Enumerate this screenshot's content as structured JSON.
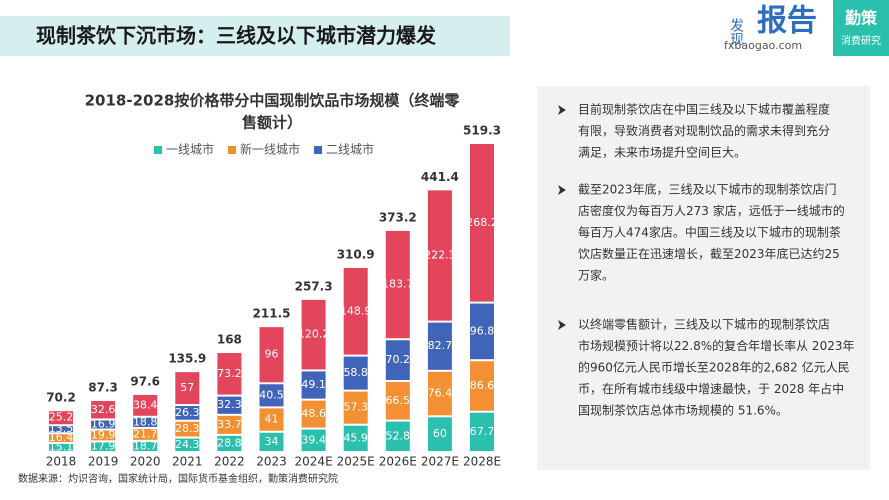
{
  "header": {
    "title": "现制茶饮下沉市场：三线及以下城市潜力爆发",
    "logo": {
      "small": "发现",
      "big": "报告",
      "url": "fxbaogao.com"
    },
    "brand": {
      "name": "勤策",
      "sub": "消费研究"
    }
  },
  "chart_data": {
    "type": "stacked_bar",
    "title_lines": [
      "2018-2028按价格带分中国现制饮品市场规模（终端零",
      "售额计）"
    ],
    "categories": [
      "2018",
      "2019",
      "2020",
      "2021",
      "2022",
      "2023",
      "2024E",
      "2025E",
      "2026E",
      "2027E",
      "2028E"
    ],
    "series": [
      {
        "name": "一线城市",
        "color": "#2bbfae",
        "values": [
          15.1,
          17.9,
          18.7,
          24.3,
          28.8,
          34,
          39.4,
          45.9,
          52.8,
          60,
          67.7
        ]
      },
      {
        "name": "新一线城市",
        "color": "#f39033",
        "values": [
          16.4,
          19.9,
          21.7,
          28.3,
          33.7,
          41,
          48.6,
          57.3,
          66.5,
          76.4,
          86.6
        ]
      },
      {
        "name": "二线城市",
        "color": "#3f64b8",
        "values": [
          13.5,
          16.9,
          18.8,
          26.3,
          32.3,
          40.5,
          49.1,
          58.8,
          70.2,
          82.7,
          96.8
        ]
      },
      {
        "color": "#e2455c",
        "values": [
          25.2,
          32.6,
          38.4,
          57,
          73.2,
          96,
          120.2,
          148.9,
          183.7,
          222.3,
          268.2
        ]
      }
    ],
    "totals": [
      70.2,
      87.3,
      97.6,
      135.9,
      168,
      211.5,
      257.3,
      310.9,
      373.2,
      441.4,
      519.3
    ],
    "source": "数据来源：灼识咨询，国家统计局，国际货币基金组织，勤策消费研究院"
  },
  "bullets": [
    [
      "目前现制茶饮店在中国三线及以下城市覆盖程度",
      "有限，导致消费者对现制饮品的需求未得到充分",
      "满足，未来市场提升空间巨大。"
    ],
    [
      "截至2023年底，三线及以下城市的现制茶饮店门",
      "店密度仅为每百万人273 家店，远低于一线城市的",
      "每百万人474家店。中国三线及以下城市的现制茶",
      "饮店数量正在迅速增长，截至2023年底已达约25",
      "万家。"
    ],
    [
      "以终端零售额计，三线及以下城市的现制茶饮店",
      "市场规模预计将以22.8%的复合年增长率从 2023年",
      "的960亿元人民币增长至2028年的2,682 亿元人民",
      "币，在所有城市线级中增速最快，于 2028 年占中",
      "国现制茶饮店总体市场规模的 51.6%。"
    ]
  ]
}
